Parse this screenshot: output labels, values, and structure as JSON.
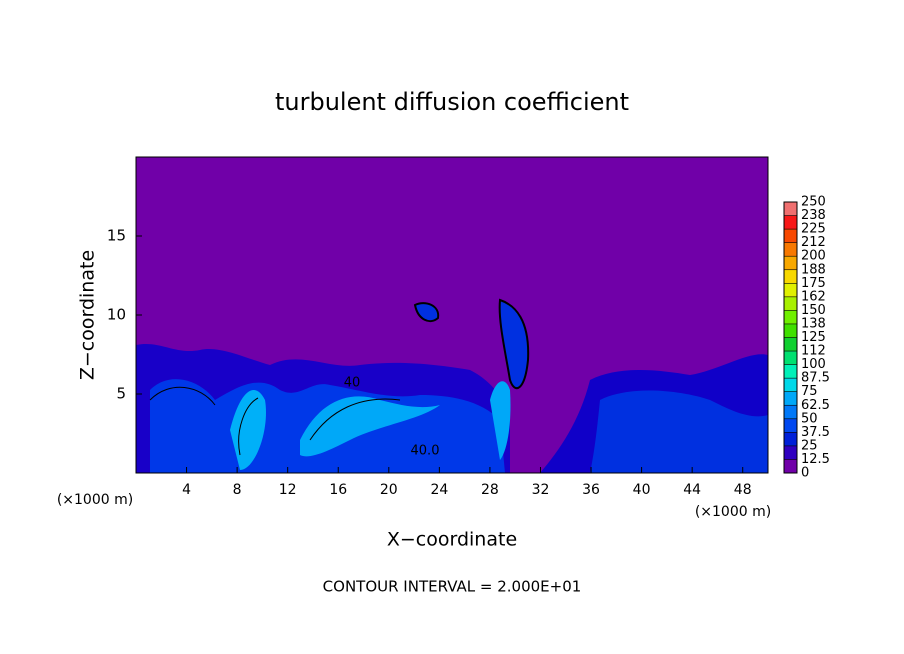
{
  "chart_data": {
    "type": "contour",
    "title": "turbulent diffusion coefficient",
    "xlabel": "X−coordinate",
    "ylabel": "Z−coordinate",
    "x_unit": "(×1000 m)",
    "annotation": "CONTOUR INTERVAL = 2.000E+01",
    "contour_labels": [
      "40",
      "40.0"
    ],
    "xlim": [
      0,
      50
    ],
    "xticks": [
      4,
      8,
      12,
      16,
      20,
      24,
      28,
      32,
      36,
      40,
      44,
      48
    ],
    "ylim": [
      0,
      20
    ],
    "yticks": [
      5,
      10,
      15
    ],
    "background_color": "#7000a8",
    "colorbar": {
      "levels": [
        0,
        12.5,
        25,
        37.5,
        50,
        62.5,
        75,
        87.5,
        100,
        112,
        125,
        138,
        150,
        162,
        175,
        188,
        200,
        212,
        225,
        238,
        250
      ],
      "colors": [
        "#7000a8",
        "#3000c0",
        "#0020d8",
        "#0048f0",
        "#0078f8",
        "#00a8f8",
        "#00d8e8",
        "#00f0b8",
        "#00e070",
        "#10d030",
        "#40e000",
        "#70f000",
        "#a8f000",
        "#e0f000",
        "#f8d800",
        "#f8a800",
        "#f87800",
        "#f84800",
        "#f81818",
        "#f07070"
      ]
    }
  }
}
